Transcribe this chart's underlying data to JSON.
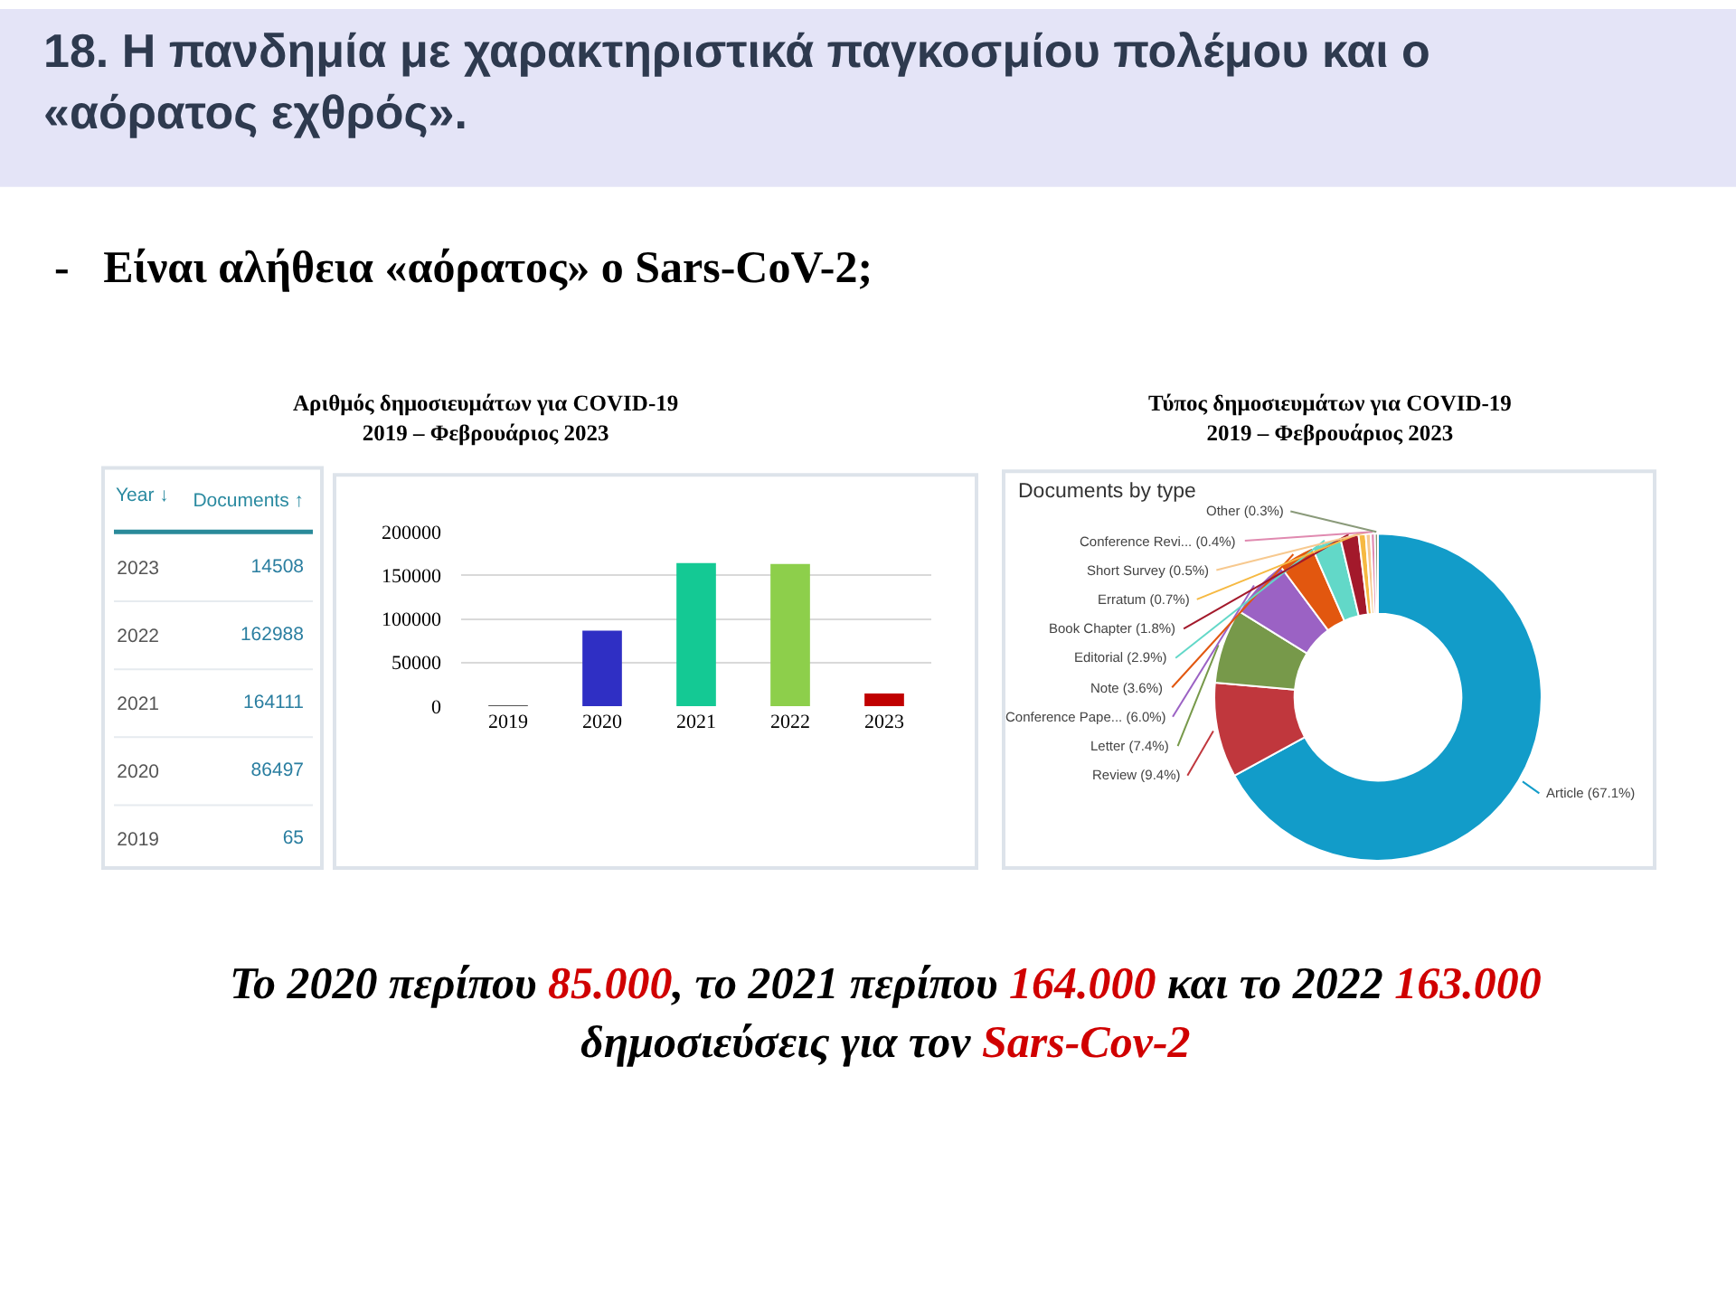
{
  "chart_data": [
    {
      "type": "heatmap",
      "ylabel": "Year ↓",
      "categories": [
        "Documents ↑"
      ],
      "y_categories": [
        "2023",
        "2022",
        "2021",
        "2020",
        "2019"
      ],
      "cells": [
        [
          14508
        ],
        [
          162988
        ],
        [
          164111
        ],
        [
          86497
        ],
        [
          65
        ]
      ],
      "data_labels": true,
      "annotations": [
        "18. Η πανδημία με χαρακτηριστικά παγκοσμίου πολέμου και ο «αόρατος εχθρός».",
        "-   Είναι αλήθεια «αόρατος» ο Sars-CoV-2;"
      ]
    },
    {
      "type": "bar",
      "title": "Αριθμός δημοσιευμάτων για COVID-19\n2019 – Φεβρουάριος 2023",
      "categories": [
        "2019",
        "2020",
        "2021",
        "2022",
        "2023"
      ],
      "values": [
        65,
        86497,
        164111,
        162988,
        14508
      ],
      "colors": [
        "#1a1a1a",
        "#2f2fc4",
        "#14c994",
        "#8dcf4b",
        "#c00000"
      ],
      "ylim": [
        0,
        200000
      ],
      "yticks": [
        0,
        50000,
        100000,
        150000,
        200000
      ],
      "grid": "y",
      "annotations": [
        "Το 2020 περίπου 85.000, το 2021 περίπου 164.000 και το 2022 163.000 δημοσιεύσεις για τον Sars-Cov-2"
      ]
    },
    {
      "type": "donut",
      "title": "Τύπος δημοσιευμάτων για COVID-19\n2019 – Φεβρουάριος 2023",
      "subtitle": "Documents by type",
      "categories": [
        "Article",
        "Review",
        "Letter",
        "Conference Pape...",
        "Note",
        "Editorial",
        "Book Chapter",
        "Erratum",
        "Short Survey",
        "Conference Revi...",
        "Other"
      ],
      "values": [
        67.1,
        9.4,
        7.4,
        6.0,
        3.6,
        2.9,
        1.8,
        0.7,
        0.5,
        0.4,
        0.3
      ],
      "value_labels": [
        "(67.1%)",
        "(9.4%)",
        "(7.4%)",
        "(6.0%)",
        "(3.6%)",
        "(2.9%)",
        "(1.8%)",
        "(0.7%)",
        "(0.5%)",
        "(0.4%)",
        "(0.3%)"
      ],
      "colors": [
        "#129cc9",
        "#c0373d",
        "#77994a",
        "#9b62c4",
        "#e2570f",
        "#62d8c8",
        "#a3192b",
        "#f6b942",
        "#f7c98f",
        "#e08ab0",
        "#8a9a7a"
      ]
    }
  ]
}
